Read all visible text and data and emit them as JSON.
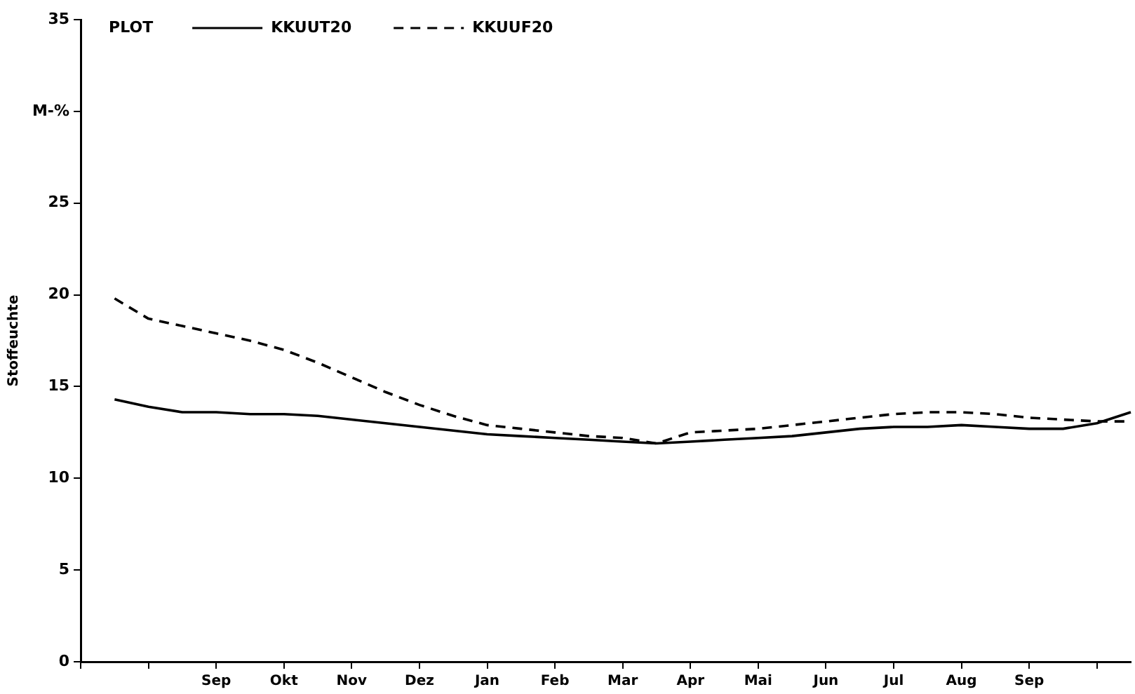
{
  "chart_data": {
    "type": "line",
    "ylabel": "Stoffeuchte",
    "legend_title": "PLOT",
    "legend": "top left",
    "grid": false,
    "marker": "none",
    "categories": [
      null,
      null,
      null,
      null,
      "Sep",
      null,
      "Okt",
      null,
      "Nov",
      null,
      "Dez",
      null,
      "Jan",
      null,
      "Feb",
      null,
      "Mar",
      null,
      "Apr",
      null,
      "Mai",
      null,
      "Jun",
      null,
      "Jul",
      null,
      "Aug",
      null,
      "Sep",
      null,
      null,
      null
    ],
    "ylim": [
      0,
      35
    ],
    "yticks": [
      0,
      5,
      10,
      15,
      20,
      25,
      {
        "value": 30,
        "label": "M-%"
      },
      35
    ],
    "series": [
      {
        "name": "KKUUT20",
        "color": "#000000",
        "line_style": "solid",
        "values": [
          null,
          14.3,
          13.9,
          13.6,
          13.6,
          13.5,
          13.5,
          13.4,
          13.2,
          13.0,
          12.8,
          12.6,
          12.4,
          12.3,
          12.2,
          12.1,
          12.0,
          11.9,
          12.0,
          12.1,
          12.2,
          12.3,
          12.5,
          12.7,
          12.8,
          12.8,
          12.9,
          12.8,
          12.7,
          12.7,
          13.0,
          13.6
        ]
      },
      {
        "name": "KKUUF20",
        "color": "#000000",
        "line_style": "dashed",
        "values": [
          null,
          19.8,
          18.7,
          18.3,
          17.9,
          17.5,
          17.0,
          16.3,
          15.5,
          14.7,
          14.0,
          13.4,
          12.9,
          12.7,
          12.5,
          12.3,
          12.2,
          11.9,
          12.5,
          12.6,
          12.7,
          12.9,
          13.1,
          13.3,
          13.5,
          13.6,
          13.6,
          13.5,
          13.3,
          13.2,
          13.1,
          13.1
        ]
      }
    ]
  }
}
